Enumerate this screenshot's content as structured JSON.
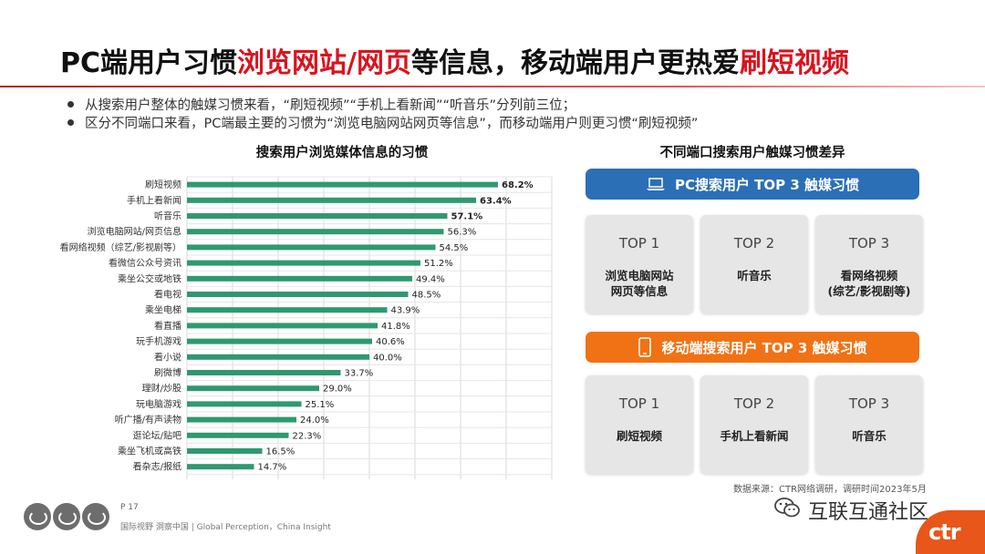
{
  "title": {
    "part1": "PC端用户习惯",
    "part2": "浏览网站/网页",
    "part3": "等信息，移动端用户更热爱",
    "part4": "刷短视频"
  },
  "bullets": [
    "从搜索用户整体的触媒习惯来看，“刷短视频”“手机上看新闻”“听音乐”分列前三位；",
    "区分不同端口来看，PC端最主要的习惯为“浏览电脑网站网页等信息”，而移动端用户则更习惯“刷短视频”"
  ],
  "chart_data": {
    "type": "bar",
    "orientation": "horizontal",
    "title": "搜索用户浏览媒体信息的习惯",
    "categories": [
      "刷短视频",
      "手机上看新闻",
      "听音乐",
      "浏览电脑网站/网页信息",
      "看网络视频（综艺/影视剧等）",
      "看微信公众号资讯",
      "乘坐公交或地铁",
      "看电视",
      "乘坐电梯",
      "看直播",
      "玩手机游戏",
      "看小说",
      "刷微博",
      "理财/炒股",
      "玩电脑游戏",
      "听广播/有声读物",
      "逛论坛/贴吧",
      "乘坐飞机或高铁",
      "看杂志/报纸"
    ],
    "values": [
      68.2,
      63.4,
      57.1,
      56.3,
      54.5,
      51.2,
      49.4,
      48.5,
      43.9,
      41.8,
      40.6,
      40.0,
      33.7,
      29.0,
      25.1,
      24.0,
      22.3,
      16.5,
      14.7
    ],
    "value_labels": [
      "68.2%",
      "63.4%",
      "57.1%",
      "56.3%",
      "54.5%",
      "51.2%",
      "49.4%",
      "48.5%",
      "43.9%",
      "41.8%",
      "40.6%",
      "40.0%",
      "33.7%",
      "29.0%",
      "25.1%",
      "24.0%",
      "22.3%",
      "16.5%",
      "14.7%"
    ],
    "bold_top": 3,
    "bar_color": "#2e9970",
    "xlim": [
      0,
      80
    ],
    "grid": true
  },
  "right": {
    "title": "不同端口搜索用户触媒习惯差异",
    "pc_banner": "PC搜索用户 TOP 3 触媒习惯",
    "mobile_banner": "移动端搜索用户 TOP 3 触媒习惯",
    "pc_color": "#2b6fb6",
    "mobile_color": "#f07214",
    "pc_cards": [
      {
        "rank": "TOP 1",
        "label": "浏览电脑网站\n网页等信息"
      },
      {
        "rank": "TOP 2",
        "label": "听音乐"
      },
      {
        "rank": "TOP 3",
        "label": "看网络视频\n(综艺/影视剧等)"
      }
    ],
    "mobile_cards": [
      {
        "rank": "TOP 1",
        "label": "刷短视频"
      },
      {
        "rank": "TOP 2",
        "label": "手机上看新闻"
      },
      {
        "rank": "TOP 3",
        "label": "听音乐"
      }
    ]
  },
  "source": "数据来源：CTR网络调研，调研时间2023年5月",
  "footer": {
    "page": "P 17",
    "tagline": "国际视野  洞察中国 | Global Perception，China Insight",
    "watermark": "互联互通社区",
    "logo": "ctr"
  },
  "icons": {
    "pc": "laptop-icon",
    "mobile": "phone-icon",
    "watermark": "wechat-icon",
    "bullet": "bullet-dot"
  },
  "colors": {
    "title_highlight": "#d9141e",
    "bar": "#2e9970",
    "logo_orange": "#e8561a"
  }
}
